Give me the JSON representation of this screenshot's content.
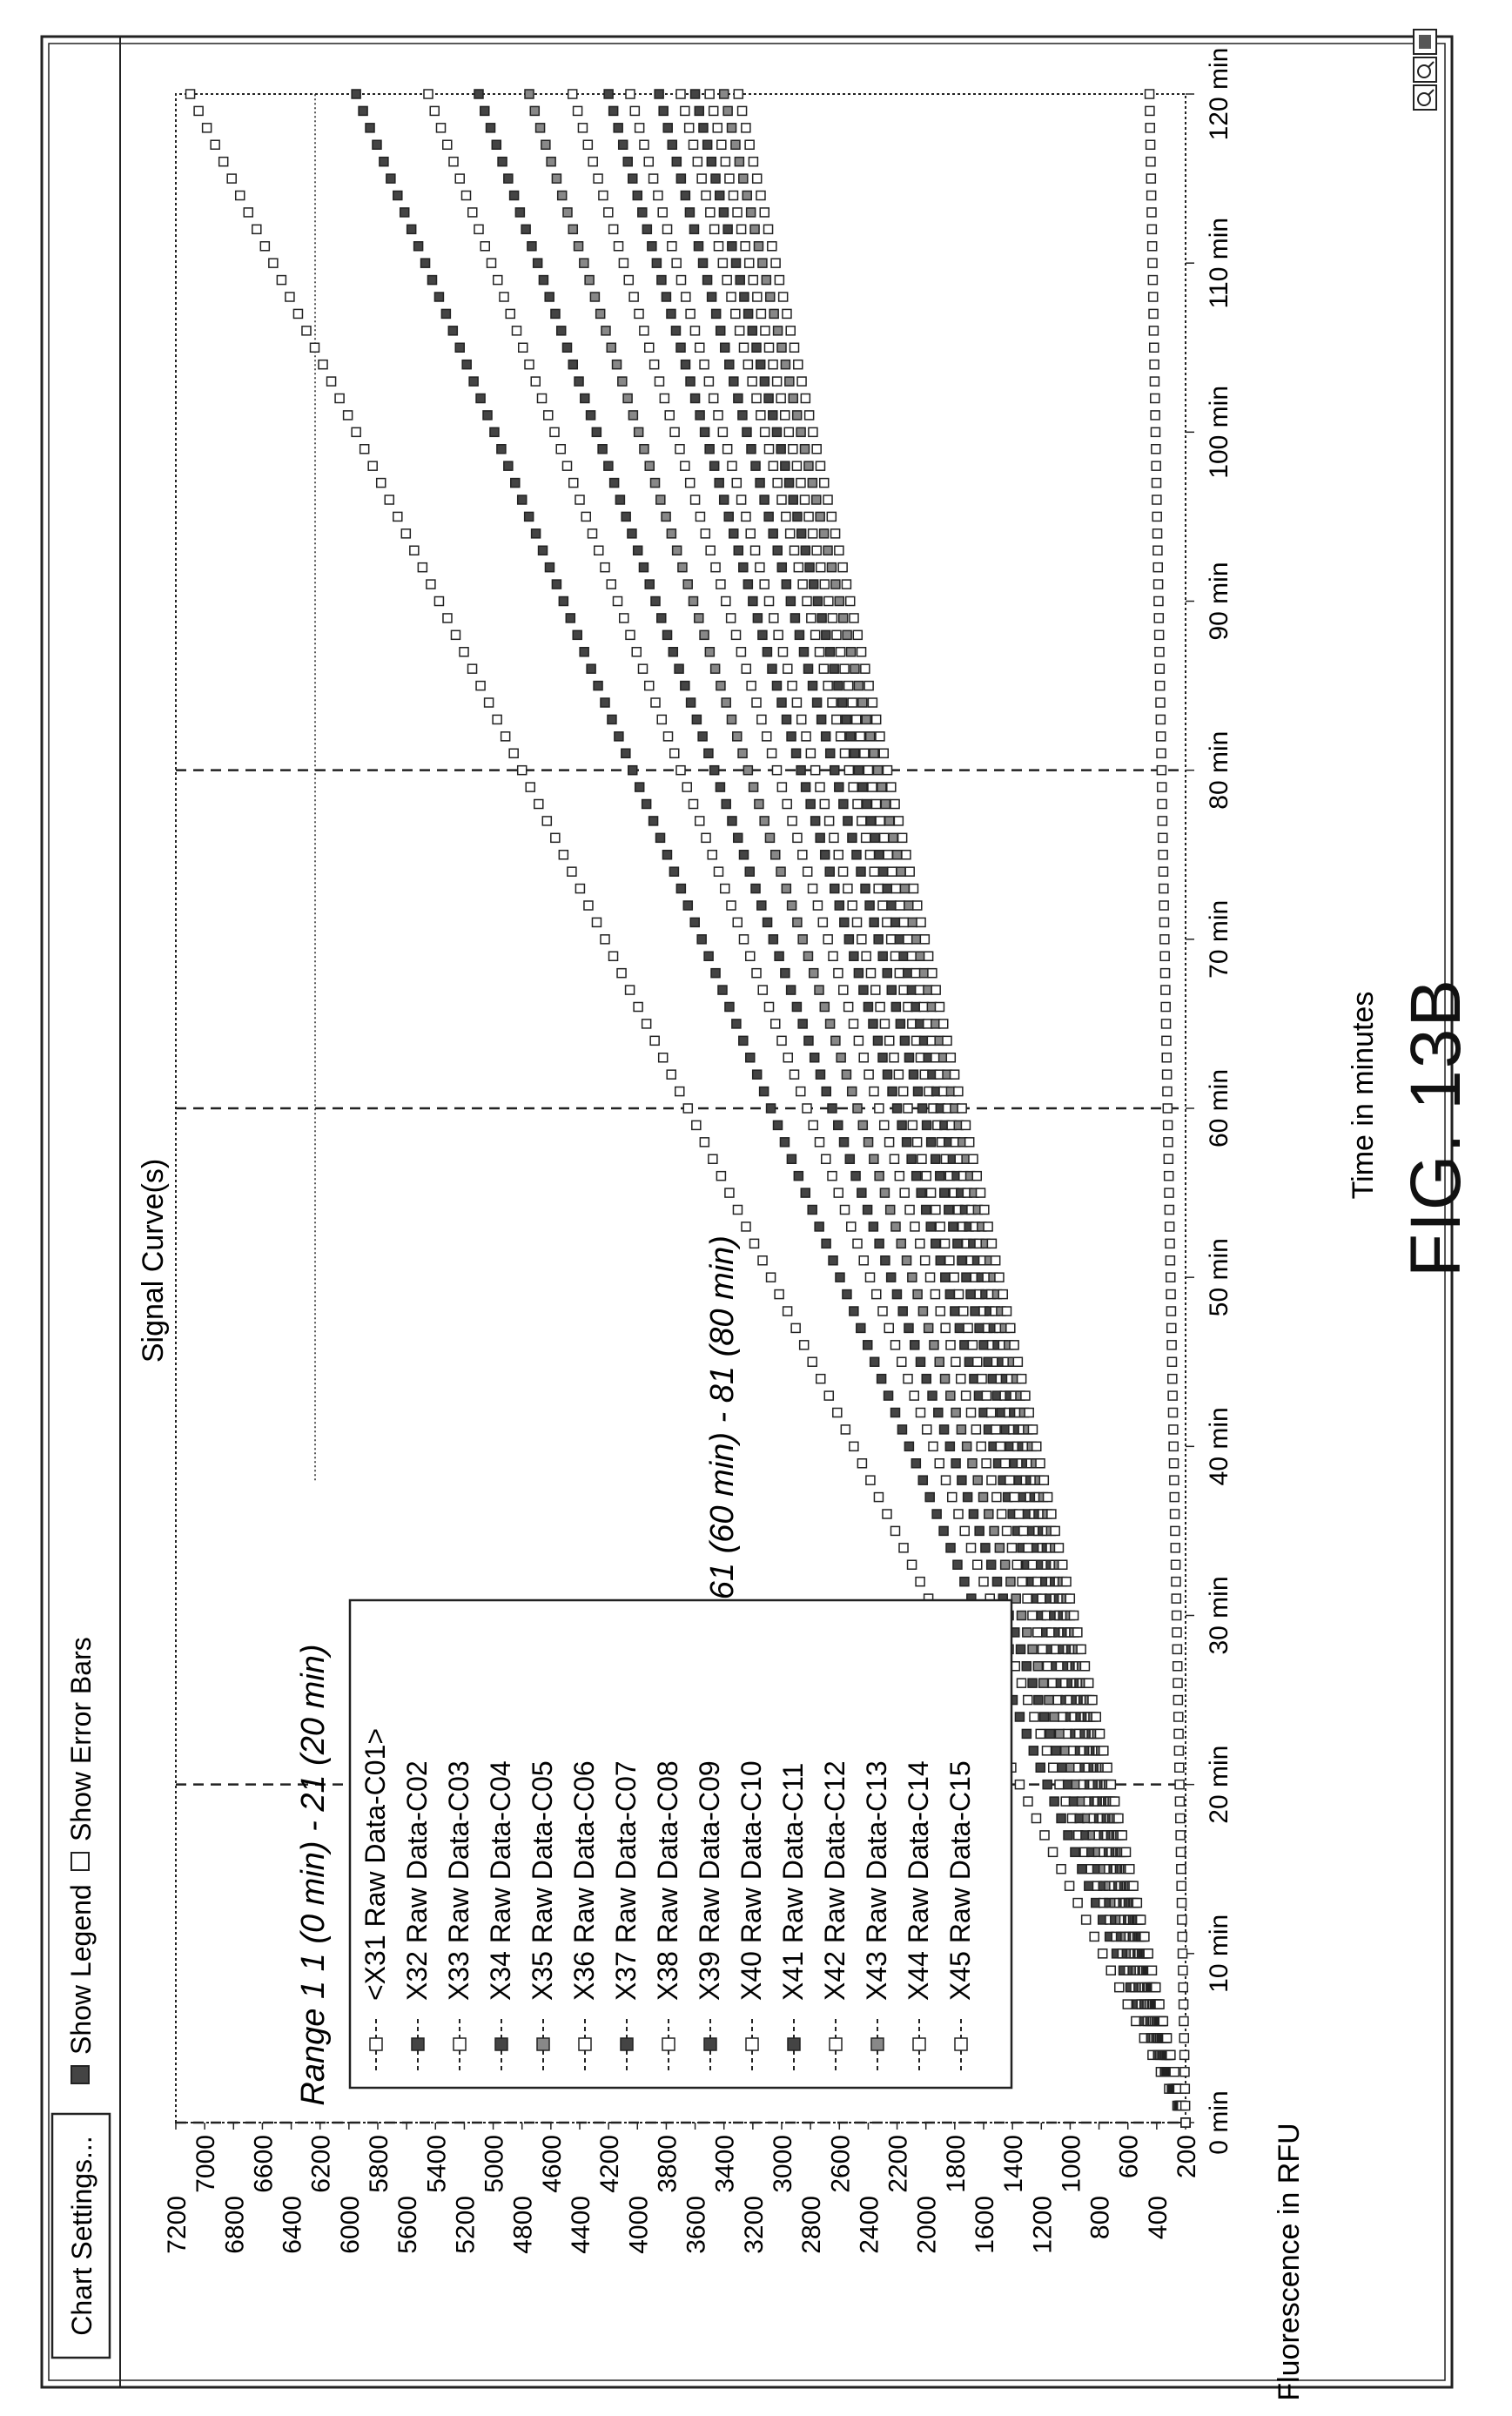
{
  "toolbar": {
    "chart_settings_label": "Chart Settings...",
    "show_legend_label": "Show Legend",
    "show_error_bars_label": "Show Error Bars"
  },
  "zoom_icons": [
    "zoom-in-icon",
    "zoom-out-icon",
    "zoom-fit-icon"
  ],
  "range_markers": [
    {
      "label": "Range 1 1 (0 min) - 21 (20 min)"
    },
    {
      "label": "Range 2 61 (60 min) - 81 (80 min)"
    }
  ],
  "figure_caption": "FIG. 13B",
  "chart_data": {
    "type": "scatter",
    "title": "Signal Curve(s)",
    "xlabel": "Time in minutes",
    "ylabel": "Fluorescence in RFU",
    "xlim": [
      0,
      120
    ],
    "ylim": [
      200,
      7200
    ],
    "x_ticks": [
      "0 min",
      "10 min",
      "20 min",
      "30 min",
      "40 min",
      "50 min",
      "60 min",
      "70 min",
      "80 min",
      "90 min",
      "100 min",
      "110 min",
      "120 min"
    ],
    "y_ticks": [
      "200",
      "400",
      "600",
      "800",
      "1000",
      "1200",
      "1400",
      "1600",
      "1800",
      "2000",
      "2200",
      "2400",
      "2600",
      "2800",
      "3000",
      "3200",
      "3400",
      "3600",
      "3800",
      "4000",
      "4200",
      "4400",
      "4600",
      "4800",
      "5000",
      "5200",
      "5400",
      "5600",
      "5800",
      "6000",
      "6200",
      "6400",
      "6600",
      "6800",
      "7000",
      "7200"
    ],
    "ranges": [
      {
        "start": 0,
        "end": 20
      },
      {
        "start": 60,
        "end": 80
      }
    ],
    "legend_position": "top-left",
    "series": [
      {
        "name": "<X31 Raw Data-C01>",
        "start": 200,
        "end": 7100
      },
      {
        "name": "X32 Raw Data-C02",
        "start": 200,
        "end": 5950
      },
      {
        "name": "X33 Raw Data-C03",
        "start": 200,
        "end": 5450
      },
      {
        "name": "X34 Raw Data-C04",
        "start": 200,
        "end": 5100
      },
      {
        "name": "X35 Raw Data-C05",
        "start": 200,
        "end": 4750
      },
      {
        "name": "X36 Raw Data-C06",
        "start": 200,
        "end": 4450
      },
      {
        "name": "X37 Raw Data-C07",
        "start": 200,
        "end": 4200
      },
      {
        "name": "X38 Raw Data-C08",
        "start": 200,
        "end": 4050
      },
      {
        "name": "X39 Raw Data-C09",
        "start": 200,
        "end": 3850
      },
      {
        "name": "X40 Raw Data-C10",
        "start": 200,
        "end": 3700
      },
      {
        "name": "X41 Raw Data-C11",
        "start": 200,
        "end": 3600
      },
      {
        "name": "X42 Raw Data-C12",
        "start": 200,
        "end": 3500
      },
      {
        "name": "X43 Raw Data-C13",
        "start": 200,
        "end": 3400
      },
      {
        "name": "X44 Raw Data-C14",
        "start": 200,
        "end": 3300
      },
      {
        "name": "X45 Raw Data-C15",
        "start": 200,
        "end": 450
      }
    ]
  }
}
